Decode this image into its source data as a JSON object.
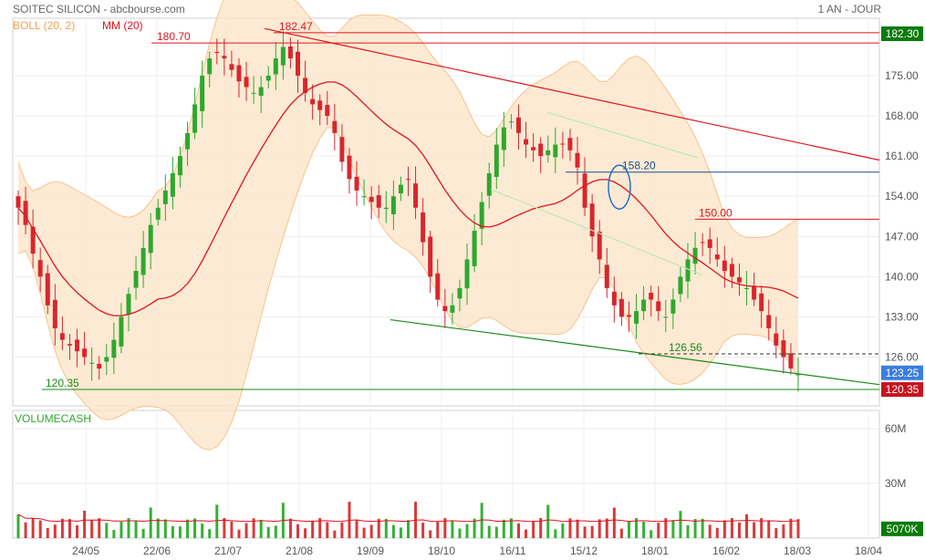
{
  "header": {
    "title": "SOITEC SILICON - abcbourse.com",
    "period": "1 AN - JOUR"
  },
  "colors": {
    "boll_band": "#f7c48a",
    "boll_fill": "#fde6cc",
    "mm20": "#e0141e",
    "candle_up": "#2ea82e",
    "candle_down": "#d8262e",
    "volume_up": "#35b035",
    "volume_down": "#d83a3a",
    "resistance": "#e0141e",
    "support": "#1a8a1a",
    "level_blue": "#1e4f8a",
    "tag_price": "#0a7a0a",
    "tag_last": "#3a7de0",
    "tag_low": "#c8141e"
  },
  "chart_data": [
    {
      "type": "candlestick",
      "name": "price",
      "legend": [
        {
          "label": "BOLL (20, 2)",
          "color": "#f0a050"
        },
        {
          "label": "MM (20)",
          "color": "#e0141e"
        }
      ],
      "yticks": [
        126.0,
        133.0,
        140.0,
        147.0,
        154.0,
        161.0,
        168.0,
        175.0
      ],
      "ylim": [
        117.5,
        185.0
      ],
      "x_dates": [
        "24/05",
        "22/06",
        "21/07",
        "21/08",
        "19/09",
        "18/10",
        "16/11",
        "15/12",
        "18/01",
        "16/02",
        "18/03",
        "18/04"
      ],
      "price_tags": [
        {
          "value": "182.30",
          "price": 182.3,
          "kind": "price"
        },
        {
          "value": "123.25",
          "price": 123.25,
          "kind": "last"
        },
        {
          "value": "120.35",
          "price": 120.35,
          "kind": "low"
        }
      ],
      "annotations": [
        {
          "text": "180.70",
          "price": 180.7,
          "kind": "resistance"
        },
        {
          "text": "182.47",
          "price": 182.47,
          "kind": "resistance"
        },
        {
          "text": "158.20",
          "price": 158.2,
          "kind": "level_blue"
        },
        {
          "text": "150.00",
          "price": 150.0,
          "kind": "resistance"
        },
        {
          "text": "126.56",
          "price": 126.56,
          "kind": "support"
        },
        {
          "text": "120.35",
          "price": 120.35,
          "kind": "support"
        }
      ],
      "close_approx": [
        152,
        149,
        144,
        140,
        135,
        131,
        129,
        128,
        127,
        126,
        125,
        124,
        126,
        129,
        133,
        137,
        141,
        145,
        149,
        152,
        155,
        158,
        161,
        165,
        170,
        175,
        178,
        179,
        178,
        176,
        174,
        173,
        172,
        173,
        175,
        178,
        180,
        178,
        175,
        172,
        170,
        169,
        168,
        165,
        160,
        157,
        155,
        154,
        153,
        152,
        152,
        154,
        156,
        157,
        152,
        146,
        140,
        136,
        134,
        135,
        138,
        143,
        148,
        153,
        158,
        163,
        166,
        167,
        165,
        163,
        162,
        161,
        162,
        163,
        163,
        162,
        159,
        152,
        147,
        143,
        138,
        135,
        133,
        133,
        134,
        136,
        136,
        134,
        133,
        136,
        140,
        143,
        145,
        146,
        145,
        143,
        141,
        140,
        139,
        138,
        136,
        134,
        131,
        128,
        126,
        124,
        123
      ]
    },
    {
      "type": "bar",
      "name": "volume",
      "label": "VOLUMECASH",
      "yticks": [
        {
          "label": "60M",
          "value": 60000000
        },
        {
          "label": "30M",
          "value": 30000000
        }
      ],
      "ylim": [
        0,
        70000000
      ],
      "last_value": "5070K"
    }
  ]
}
